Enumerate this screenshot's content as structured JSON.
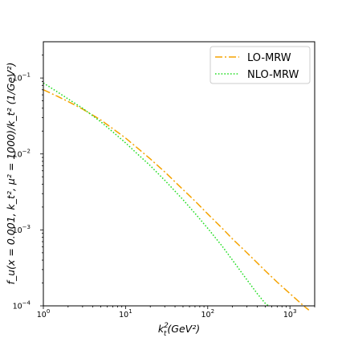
{
  "chart_data": {
    "type": "line",
    "x_scale": "log",
    "y_scale": "log",
    "xlim": [
      1,
      2000
    ],
    "ylim": [
      0.0001,
      0.3
    ],
    "xlabel_main": "k",
    "xlabel_sup": "2",
    "xlabel_sub": "t",
    "xlabel_units": "(GeV²)",
    "ylabel": "f_u(x = 0.001, k_t², μ² = 1000)/k_t² (1/GeV²)",
    "x_ticks": [
      {
        "value": 1,
        "base": "10",
        "exp": "0"
      },
      {
        "value": 10,
        "base": "10",
        "exp": "1"
      },
      {
        "value": 100,
        "base": "10",
        "exp": "2"
      },
      {
        "value": 1000,
        "base": "10",
        "exp": "3"
      }
    ],
    "y_ticks": [
      {
        "value": 0.0001,
        "base": "10",
        "exp": "−4"
      },
      {
        "value": 0.001,
        "base": "10",
        "exp": "−3"
      },
      {
        "value": 0.01,
        "base": "10",
        "exp": "−2"
      },
      {
        "value": 0.1,
        "base": "10",
        "exp": "−1"
      }
    ],
    "grid": false,
    "legend_position": "top-right",
    "series": [
      {
        "name": "LO-MRW",
        "color": "#f5a300",
        "style": "dashdot",
        "x": [
          1,
          1.5,
          2,
          3,
          5,
          7,
          10,
          15,
          20,
          30,
          50,
          70,
          100,
          150,
          200,
          300,
          500,
          700,
          1000,
          1500,
          1700
        ],
        "y": [
          0.07,
          0.057,
          0.049,
          0.039,
          0.028,
          0.0215,
          0.0162,
          0.0112,
          0.0086,
          0.0058,
          0.0034,
          0.0024,
          0.00162,
          0.00105,
          0.00076,
          0.0005,
          0.00029,
          0.000205,
          0.000145,
          9.8e-05,
          8.8e-05
        ]
      },
      {
        "name": "NLO-MRW",
        "color": "#22dd22",
        "style": "dotted",
        "x": [
          1,
          1.5,
          2,
          3,
          5,
          7,
          10,
          15,
          20,
          30,
          50,
          70,
          100,
          150,
          200,
          300,
          400,
          500,
          550
        ],
        "y": [
          0.086,
          0.065,
          0.053,
          0.04,
          0.0265,
          0.0195,
          0.014,
          0.0093,
          0.007,
          0.0045,
          0.0025,
          0.00165,
          0.00105,
          0.00061,
          0.0004,
          0.00022,
          0.000145,
          0.000108,
          0.0001
        ]
      }
    ]
  }
}
